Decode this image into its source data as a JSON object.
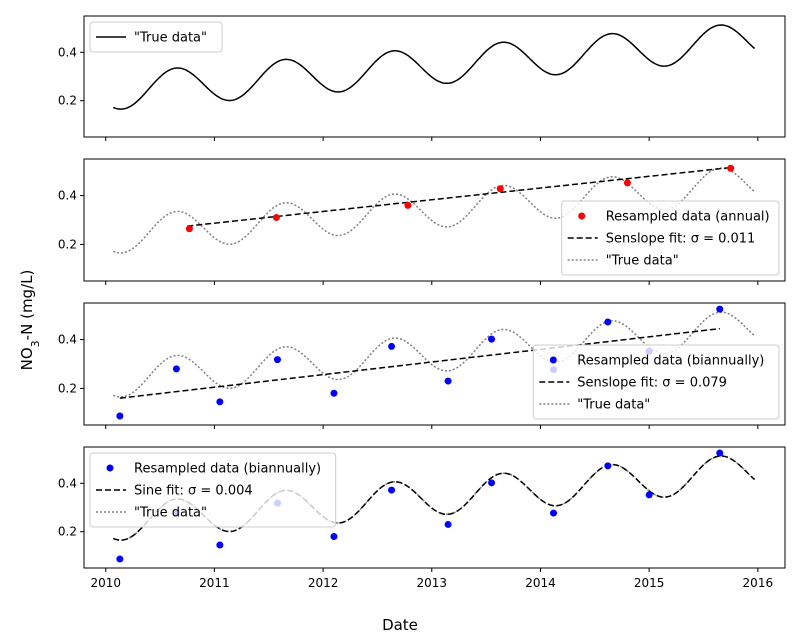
{
  "figure": {
    "ylabel_main": "NO",
    "ylabel_sub": "3",
    "ylabel_rest": "-N (mg/L)",
    "xlabel": "Date"
  },
  "chart_data": [
    {
      "type": "line",
      "panel": 1,
      "xlim": [
        2009.8,
        2016.25
      ],
      "ylim": [
        0.05,
        0.55
      ],
      "yticks": [
        0.2,
        0.4
      ],
      "xticks": [
        2010,
        2011,
        2012,
        2013,
        2014,
        2015,
        2016
      ],
      "show_xtick_labels": false,
      "legend_position": "top-left",
      "legend": [
        {
          "label": "\"True data\"",
          "kind": "line",
          "color": "#000000"
        }
      ],
      "series": [
        {
          "name": "\"True data\"",
          "style": "solid",
          "color": "#000000",
          "model": {
            "x_start": 2010.07,
            "x_end": 2015.97,
            "base": 0.236,
            "slope": 0.0355,
            "amplitude": 0.076,
            "phase_peak": 0.65
          }
        }
      ]
    },
    {
      "type": "scatter",
      "panel": 2,
      "xlim": [
        2009.8,
        2016.25
      ],
      "ylim": [
        0.05,
        0.55
      ],
      "yticks": [
        0.2,
        0.4
      ],
      "xticks": [
        2010,
        2011,
        2012,
        2013,
        2014,
        2015,
        2016
      ],
      "show_xtick_labels": false,
      "legend_position": "lower-right",
      "legend": [
        {
          "label": "Resampled data (annual)",
          "kind": "marker",
          "color": "#ff0000"
        },
        {
          "label": "Senslope fit: σ = 0.011",
          "kind": "dashed",
          "color": "#000000"
        },
        {
          "label": "\"True data\"",
          "kind": "dotted",
          "color": "#808080"
        }
      ],
      "points": {
        "name": "Resampled data (annual)",
        "color": "#ff0000",
        "x": [
          2010.77,
          2011.57,
          2012.78,
          2013.63,
          2014.8,
          2015.75
        ],
        "y": [
          0.264,
          0.31,
          0.36,
          0.428,
          0.452,
          0.512
        ]
      },
      "fit": {
        "name": "Senslope fit: σ = 0.011",
        "style": "dashed",
        "color": "#000000",
        "x": [
          2010.75,
          2015.75
        ],
        "y": [
          0.275,
          0.515
        ]
      },
      "series": [
        {
          "name": "\"True data\"",
          "style": "dotted",
          "color": "#808080",
          "model": {
            "x_start": 2010.07,
            "x_end": 2015.97,
            "base": 0.236,
            "slope": 0.0355,
            "amplitude": 0.076,
            "phase_peak": 0.65
          }
        }
      ]
    },
    {
      "type": "scatter",
      "panel": 3,
      "xlim": [
        2009.8,
        2016.25
      ],
      "ylim": [
        0.05,
        0.55
      ],
      "yticks": [
        0.2,
        0.4
      ],
      "xticks": [
        2010,
        2011,
        2012,
        2013,
        2014,
        2015,
        2016
      ],
      "show_xtick_labels": false,
      "legend_position": "lower-right",
      "legend": [
        {
          "label": "Resampled data (biannually)",
          "kind": "marker",
          "color": "#0000ff"
        },
        {
          "label": "Senslope fit: σ = 0.079",
          "kind": "dashed",
          "color": "#000000"
        },
        {
          "label": "\"True data\"",
          "kind": "dotted",
          "color": "#808080"
        }
      ],
      "points": {
        "name": "Resampled data (biannually)",
        "color": "#0000ff",
        "x": [
          2010.13,
          2010.65,
          2011.05,
          2011.58,
          2012.1,
          2012.63,
          2013.15,
          2013.55,
          2014.12,
          2014.62,
          2015.0,
          2015.65
        ],
        "y": [
          0.087,
          0.28,
          0.145,
          0.318,
          0.18,
          0.372,
          0.23,
          0.402,
          0.277,
          0.472,
          0.352,
          0.525
        ]
      },
      "fit": {
        "name": "Senslope fit: σ = 0.079",
        "style": "dashed",
        "color": "#000000",
        "x": [
          2010.13,
          2015.65
        ],
        "y": [
          0.16,
          0.445
        ]
      },
      "series": [
        {
          "name": "\"True data\"",
          "style": "dotted",
          "color": "#808080",
          "model": {
            "x_start": 2010.07,
            "x_end": 2015.97,
            "base": 0.236,
            "slope": 0.0355,
            "amplitude": 0.076,
            "phase_peak": 0.65
          }
        }
      ]
    },
    {
      "type": "scatter",
      "panel": 4,
      "xlim": [
        2009.8,
        2016.25
      ],
      "ylim": [
        0.05,
        0.55
      ],
      "yticks": [
        0.2,
        0.4
      ],
      "xticks": [
        2010,
        2011,
        2012,
        2013,
        2014,
        2015,
        2016
      ],
      "xtick_labels": [
        "2010",
        "2011",
        "2012",
        "2013",
        "2014",
        "2015",
        "2016"
      ],
      "show_xtick_labels": true,
      "legend_position": "top-left",
      "legend": [
        {
          "label": "Resampled data (biannually)",
          "kind": "marker",
          "color": "#0000ff"
        },
        {
          "label": "Sine fit: σ = 0.004",
          "kind": "dashed",
          "color": "#000000"
        },
        {
          "label": "\"True data\"",
          "kind": "dotted",
          "color": "#808080"
        }
      ],
      "points": {
        "name": "Resampled data (biannually)",
        "color": "#0000ff",
        "x": [
          2010.13,
          2010.65,
          2011.05,
          2011.58,
          2012.1,
          2012.63,
          2013.15,
          2013.55,
          2014.12,
          2014.62,
          2015.0,
          2015.65
        ],
        "y": [
          0.087,
          0.28,
          0.145,
          0.318,
          0.18,
          0.372,
          0.23,
          0.402,
          0.277,
          0.472,
          0.352,
          0.525
        ]
      },
      "fit": {
        "name": "Sine fit: σ = 0.004",
        "style": "dashed",
        "color": "#000000",
        "model": {
          "x_start": 2010.07,
          "x_end": 2015.97,
          "base": 0.236,
          "slope": 0.0355,
          "amplitude": 0.076,
          "phase_peak": 0.65
        }
      },
      "series": [
        {
          "name": "\"True data\"",
          "style": "dotted",
          "color": "#808080",
          "model": {
            "x_start": 2010.07,
            "x_end": 2015.97,
            "base": 0.236,
            "slope": 0.0355,
            "amplitude": 0.076,
            "phase_peak": 0.65
          }
        }
      ]
    }
  ]
}
